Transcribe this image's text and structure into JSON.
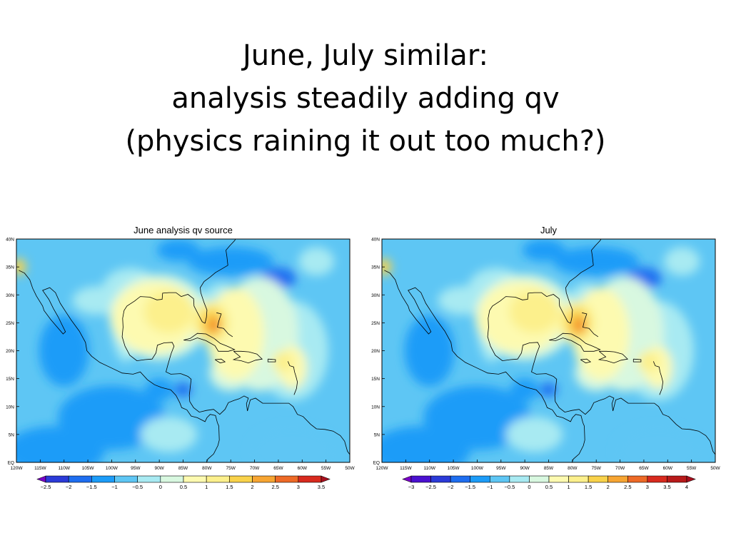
{
  "slide": {
    "title_lines": [
      "June, July similar:",
      "analysis steadily adding qv",
      "(physics raining it out too much?)"
    ]
  },
  "chart_data": [
    {
      "type": "heatmap",
      "title": "June analysis qv source",
      "x_ticks": [
        "120W",
        "115W",
        "110W",
        "105W",
        "100W",
        "95W",
        "90W",
        "85W",
        "80W",
        "75W",
        "70W",
        "65W",
        "60W",
        "55W",
        "50W"
      ],
      "y_ticks": [
        "EQ",
        "5N",
        "10N",
        "15N",
        "20N",
        "25N",
        "30N",
        "35N",
        "40N"
      ],
      "xlim": [
        -120,
        -50
      ],
      "ylim": [
        0,
        40
      ],
      "colorbar": {
        "levels": [
          "-2.5",
          "-2",
          "-1.5",
          "-1",
          "-0.5",
          "0",
          "0.5",
          "1",
          "1.5",
          "2",
          "2.5",
          "3",
          "3.5"
        ],
        "colors": [
          "#7a00c8",
          "#2b3ad8",
          "#1e6ef0",
          "#1c9cf8",
          "#5ec6f4",
          "#a8eaf2",
          "#d8f8e0",
          "#fdfab0",
          "#fcf08c",
          "#f9d24a",
          "#f7a532",
          "#ee6a26",
          "#d82a1e",
          "#a8101e"
        ]
      }
    },
    {
      "type": "heatmap",
      "title": "July",
      "x_ticks": [
        "120W",
        "115W",
        "110W",
        "105W",
        "100W",
        "95W",
        "90W",
        "85W",
        "80W",
        "75W",
        "70W",
        "65W",
        "60W",
        "55W",
        "50W"
      ],
      "y_ticks": [
        "EQ",
        "5N",
        "10N",
        "15N",
        "20N",
        "25N",
        "30N",
        "35N",
        "40N"
      ],
      "xlim": [
        -120,
        -50
      ],
      "ylim": [
        0,
        40
      ],
      "colorbar": {
        "levels": [
          "-3",
          "-2.5",
          "-2",
          "-1.5",
          "-1",
          "-0.5",
          "0",
          "0.5",
          "1",
          "1.5",
          "2",
          "2.5",
          "3",
          "3.5",
          "4"
        ],
        "colors": [
          "#7a00c8",
          "#4a10d0",
          "#2b3ad8",
          "#1e6ef0",
          "#1c9cf8",
          "#5ec6f4",
          "#a8eaf2",
          "#d8f8e0",
          "#fdfab0",
          "#fcf08c",
          "#f9d24a",
          "#f7a532",
          "#ee6a26",
          "#d82a1e",
          "#b81a1a",
          "#a8101e"
        ]
      }
    }
  ]
}
